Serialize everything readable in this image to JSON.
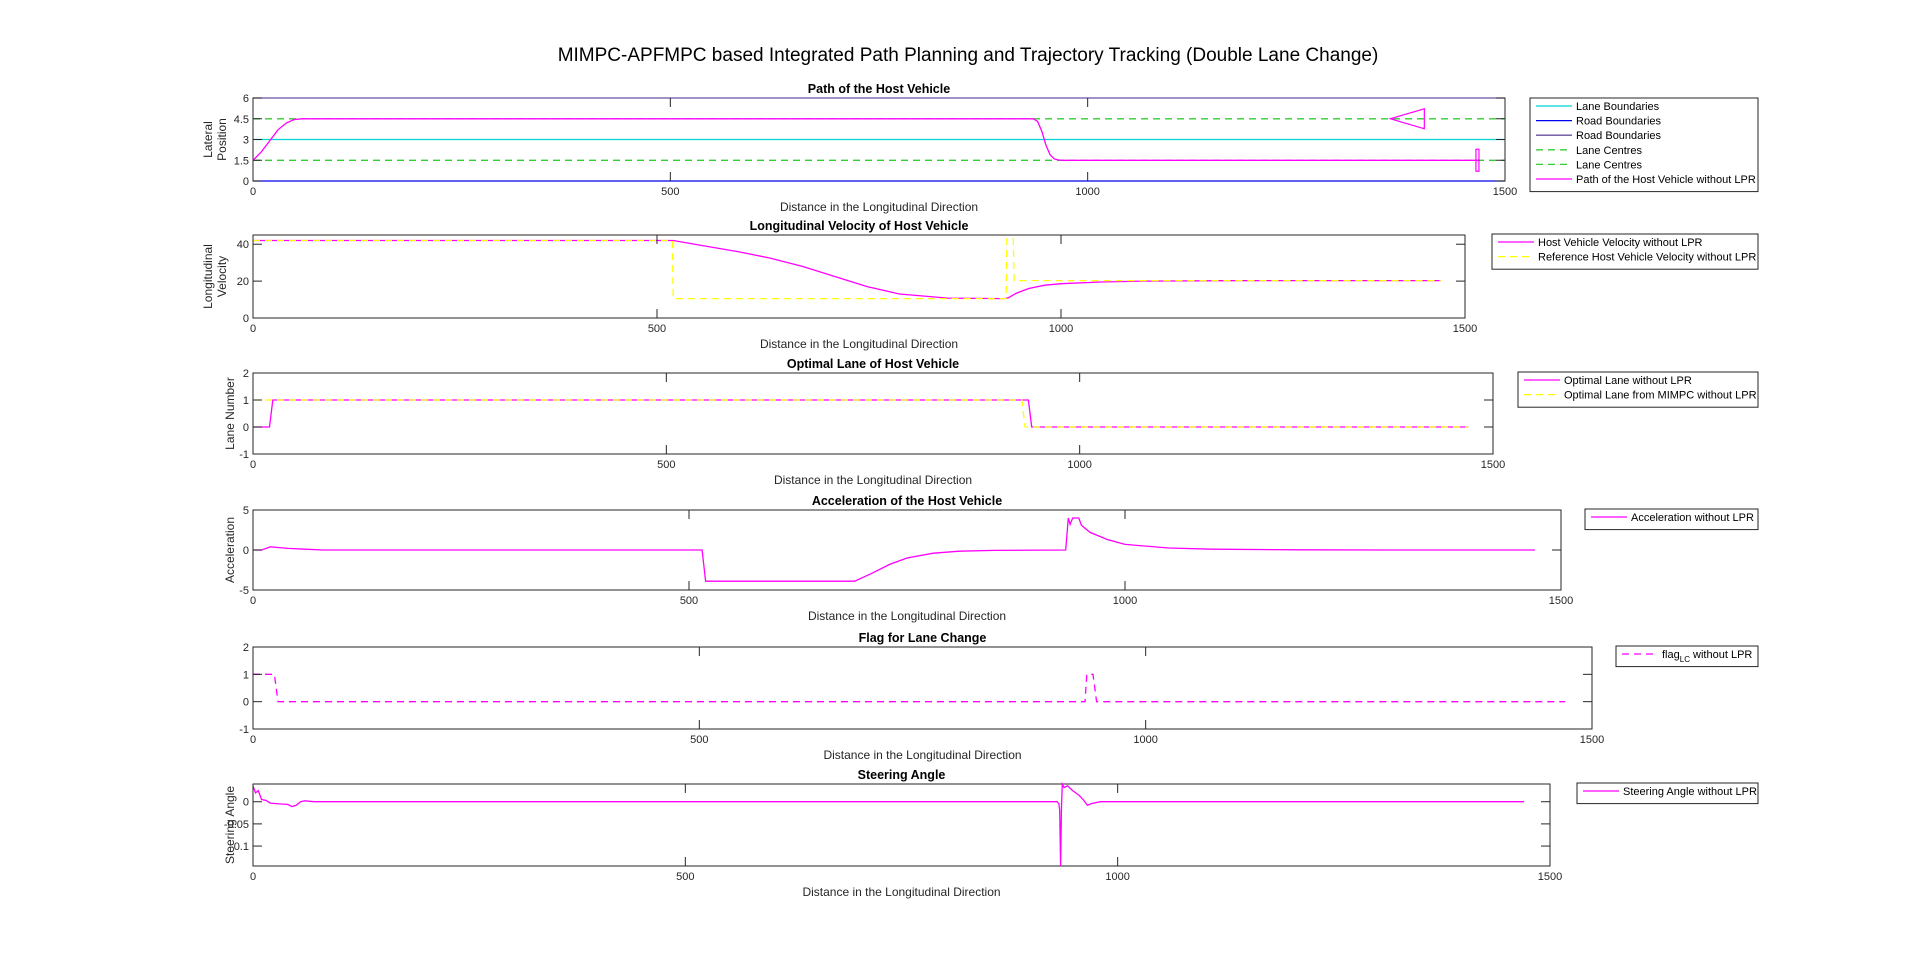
{
  "figure": {
    "title": "MIMPC-APFMPC based Integrated Path Planning and Trajectory Tracking (Double Lane Change)"
  },
  "chart_data": [
    {
      "type": "line",
      "title": "Path of the Host Vehicle",
      "xlabel": "Distance in the Longitudinal Direction",
      "ylabel": [
        "Lateral",
        "Position"
      ],
      "xlim": [
        0,
        1500
      ],
      "ylim": [
        0,
        6
      ],
      "xticks": [
        0,
        500,
        1000,
        1500
      ],
      "yticks": [
        0,
        1.5,
        3,
        4.5,
        6
      ],
      "ytick_labels": [
        "0",
        "1.5",
        "3",
        "4.5",
        "6"
      ],
      "legend_position": "right",
      "series": [
        {
          "name": "Lane Boundaries",
          "color": "#00d5d5",
          "style": "solid",
          "x": [
            0,
            1500
          ],
          "y": [
            3,
            3
          ]
        },
        {
          "name": "Road Boundaries",
          "color": "#0000ee",
          "style": "solid",
          "x": [
            0,
            1500
          ],
          "y": [
            0,
            0
          ]
        },
        {
          "name": "Road Boundaries",
          "color": "#6a4fa0",
          "style": "solid",
          "x": [
            0,
            1500
          ],
          "y": [
            6,
            6
          ]
        },
        {
          "name": "Lane Centres",
          "color": "#33cc33",
          "style": "dashed",
          "x": [
            0,
            1500
          ],
          "y": [
            1.5,
            1.5
          ]
        },
        {
          "name": "Lane Centres",
          "color": "#33cc33",
          "style": "dashed",
          "x": [
            0,
            1500
          ],
          "y": [
            4.5,
            4.5
          ]
        },
        {
          "name": "Path of the Host Vehicle without LPR",
          "color": "#ff00ff",
          "style": "solid",
          "x": [
            0,
            10,
            20,
            30,
            40,
            50,
            60,
            935,
            940,
            945,
            950,
            955,
            960,
            965,
            970,
            1470
          ],
          "y": [
            1.5,
            2.1,
            2.9,
            3.7,
            4.2,
            4.45,
            4.5,
            4.5,
            4.3,
            3.6,
            2.6,
            1.9,
            1.6,
            1.52,
            1.5,
            1.5
          ]
        },
        {
          "name": "",
          "color": "#ff00ff",
          "style": "solid",
          "marker": "triangle-left",
          "x": [
            1383
          ],
          "y": [
            4.5
          ]
        },
        {
          "name": "",
          "color": "#ff00ff",
          "style": "solid",
          "marker": "rect",
          "x": [
            1467
          ],
          "y": [
            1.5
          ]
        }
      ]
    },
    {
      "type": "line",
      "title": "Longitudinal Velocity of Host Vehicle",
      "xlabel": "Distance in the Longitudinal Direction",
      "ylabel": [
        "Longitudinal",
        "Velocity"
      ],
      "xlim": [
        0,
        1500
      ],
      "ylim": [
        0,
        45
      ],
      "xticks": [
        0,
        500,
        1000,
        1500
      ],
      "yticks": [
        0,
        20,
        40
      ],
      "ytick_labels": [
        "0",
        "20",
        "40"
      ],
      "legend_position": "right",
      "series": [
        {
          "name": "Host Vehicle Velocity without LPR",
          "color": "#ff00ff",
          "style": "solid",
          "x": [
            0,
            520,
            560,
            600,
            640,
            680,
            720,
            760,
            800,
            860,
            930,
            935,
            945,
            960,
            980,
            1000,
            1050,
            1100,
            1200,
            1300,
            1470
          ],
          "y": [
            42,
            42,
            39,
            36,
            32.5,
            28,
            22.5,
            17,
            13,
            10.8,
            10.5,
            11,
            13.5,
            16,
            17.8,
            18.6,
            19.5,
            20,
            20.2,
            20.3,
            20.3
          ]
        },
        {
          "name": "Reference Host Vehicle Velocity without LPR",
          "color": "#ffff00",
          "style": "dashed",
          "x": [
            0,
            519,
            520,
            932,
            933,
            941,
            942,
            1470
          ],
          "y": [
            42,
            42,
            10.5,
            10.5,
            43,
            43,
            20.3,
            20.3
          ]
        }
      ]
    },
    {
      "type": "line",
      "title": "Optimal Lane of Host Vehicle",
      "xlabel": "Distance in the Longitudinal Direction",
      "ylabel": [
        "Lane Number"
      ],
      "xlim": [
        0,
        1500
      ],
      "ylim": [
        -1,
        2
      ],
      "xticks": [
        0,
        500,
        1000,
        1500
      ],
      "yticks": [
        -1,
        0,
        1,
        2
      ],
      "ytick_labels": [
        "-1",
        "0",
        "1",
        "2"
      ],
      "legend_position": "right",
      "series": [
        {
          "name": "Optimal Lane without LPR",
          "color": "#ff00ff",
          "style": "solid",
          "x": [
            0,
            20,
            24,
            938,
            942,
            1470
          ],
          "y": [
            0,
            0,
            1,
            1,
            0,
            0
          ]
        },
        {
          "name": "Optimal Lane from MIMPC without LPR",
          "color": "#ffff00",
          "style": "dashed",
          "x": [
            0,
            930,
            934,
            1470
          ],
          "y": [
            1,
            1,
            0,
            0
          ]
        }
      ]
    },
    {
      "type": "line",
      "title": "Acceleration of the Host Vehicle",
      "xlabel": "Distance in the Longitudinal Direction",
      "ylabel": [
        "Acceleration"
      ],
      "xlim": [
        0,
        1500
      ],
      "ylim": [
        -5,
        5
      ],
      "xticks": [
        0,
        500,
        1000,
        1500
      ],
      "yticks": [
        -5,
        0,
        5
      ],
      "ytick_labels": [
        "-5",
        "0",
        "5"
      ],
      "legend_position": "right",
      "series": [
        {
          "name": "Acceleration without LPR",
          "color": "#ff00ff",
          "style": "solid",
          "x": [
            0,
            10,
            20,
            30,
            40,
            60,
            80,
            515,
            519,
            690,
            710,
            730,
            750,
            780,
            810,
            850,
            932,
            935,
            937,
            940,
            947,
            950,
            960,
            980,
            1000,
            1050,
            1100,
            1200,
            1300,
            1470
          ],
          "y": [
            0,
            0,
            0.4,
            0.3,
            0.2,
            0.1,
            0,
            0,
            -3.9,
            -3.9,
            -2.9,
            -1.8,
            -1.0,
            -0.4,
            -0.15,
            -0.05,
            0,
            4.0,
            3.2,
            4.0,
            4.0,
            3.1,
            2.2,
            1.3,
            0.7,
            0.25,
            0.1,
            0.02,
            0,
            0
          ]
        }
      ]
    },
    {
      "type": "line",
      "title": "Flag for Lane Change",
      "xlabel": "Distance in the Longitudinal Direction",
      "ylabel": [],
      "xlim": [
        0,
        1500
      ],
      "ylim": [
        -1,
        2
      ],
      "xticks": [
        0,
        500,
        1000,
        1500
      ],
      "yticks": [
        -1,
        0,
        1,
        2
      ],
      "ytick_labels": [
        "-1",
        "0",
        "1",
        "2"
      ],
      "legend_position": "right",
      "series": [
        {
          "name": "flag",
          "name_sub": "LC",
          "name_suffix": " without LPR",
          "color": "#ff00ff",
          "style": "dashed",
          "x": [
            0,
            24,
            28,
            932,
            934,
            941,
            945,
            1470
          ],
          "y": [
            1,
            1,
            0,
            0,
            1,
            1,
            0,
            0
          ]
        }
      ]
    },
    {
      "type": "line",
      "title": "Steering Angle",
      "xlabel": "Distance in the Longitudinal Direction",
      "ylabel": [
        "Steering Angle"
      ],
      "xlim": [
        0,
        1500
      ],
      "ylim": [
        -0.145,
        0.04
      ],
      "xticks": [
        0,
        500,
        1000,
        1500
      ],
      "yticks": [
        -0.1,
        -0.05,
        0
      ],
      "ytick_labels": [
        "-0.1",
        "-0.05",
        "0"
      ],
      "legend_position": "right",
      "series": [
        {
          "name": "Steering Angle without LPR",
          "color": "#ff00ff",
          "style": "solid",
          "x": [
            0,
            3,
            6,
            10,
            15,
            20,
            30,
            40,
            45,
            50,
            55,
            60,
            70,
            920,
            930,
            932,
            933,
            934,
            935,
            936,
            938,
            942,
            948,
            955,
            960,
            965,
            970,
            980,
            1000,
            1470
          ],
          "y": [
            0.035,
            0.02,
            0.025,
            0.005,
            0.003,
            -0.003,
            -0.005,
            -0.006,
            -0.011,
            -0.008,
            0,
            0.002,
            0,
            0,
            0,
            -0.005,
            -0.02,
            -0.145,
            -0.01,
            0.04,
            0.032,
            0.036,
            0.025,
            0.015,
            0.005,
            -0.008,
            -0.004,
            0,
            0,
            0
          ]
        }
      ]
    }
  ]
}
